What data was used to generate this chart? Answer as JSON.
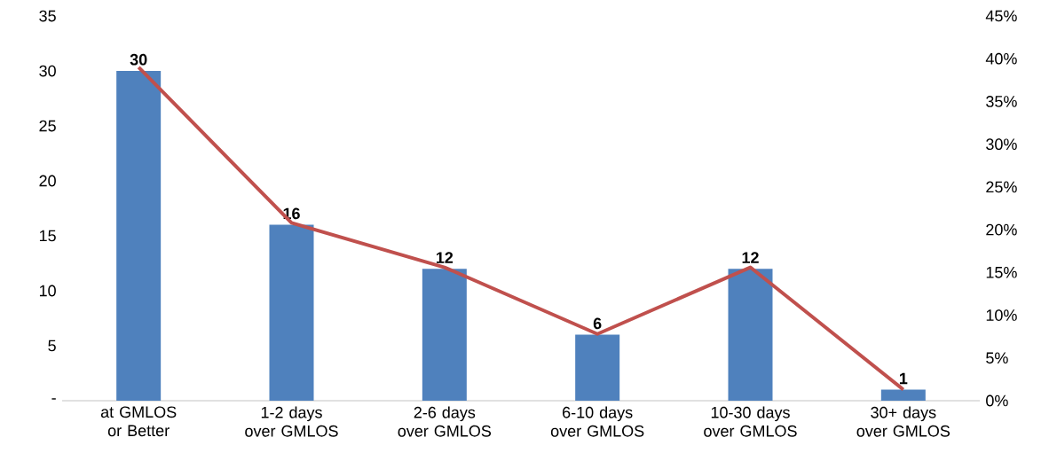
{
  "chart_data": {
    "type": "bar",
    "categories": [
      "at GMLOS or Better",
      "1-2 days over GMLOS",
      "2-6 days over GMLOS",
      "6-10 days over GMLOS",
      "10-30 days over GMLOS",
      "30+ days over GMLOS"
    ],
    "series": [
      {
        "color": "#4f81bd",
        "values": [
          30,
          16,
          12,
          6,
          12,
          1
        ],
        "value_labels": [
          "30",
          "16",
          "12",
          "6",
          "12",
          "1"
        ]
      },
      {
        "type": "line",
        "axis": "y2",
        "color": "#c0504d",
        "values": [
          39.0,
          20.8,
          15.6,
          7.8,
          15.6,
          1.3
        ]
      }
    ],
    "ylim": [
      0,
      35
    ],
    "yticks": [
      {
        "value": 0,
        "label": "-"
      },
      5,
      10,
      15,
      20,
      25,
      30,
      35
    ],
    "y2lim": [
      0,
      45
    ],
    "y2ticks": [
      {
        "value": 0,
        "label": "0%"
      },
      {
        "value": 5,
        "label": "5%"
      },
      {
        "value": 10,
        "label": "10%"
      },
      {
        "value": 15,
        "label": "15%"
      },
      {
        "value": 20,
        "label": "20%"
      },
      {
        "value": 25,
        "label": "25%"
      },
      {
        "value": 30,
        "label": "30%"
      },
      {
        "value": 35,
        "label": "35%"
      },
      {
        "value": 40,
        "label": "40%"
      },
      {
        "value": 45,
        "label": "45%"
      }
    ],
    "grid": false,
    "legend": false,
    "marker": "none",
    "line_style": "solid"
  }
}
